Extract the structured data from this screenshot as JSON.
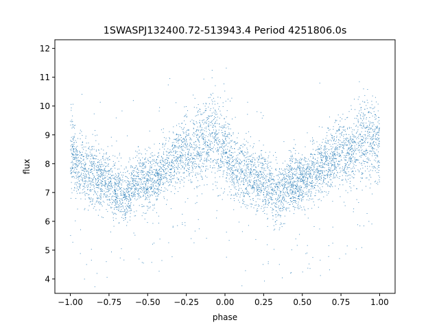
{
  "chart_data": {
    "type": "scatter",
    "title": "1SWASPJ132400.72-513943.4 Period 4251806.0s",
    "xlabel": "phase",
    "ylabel": "flux",
    "xlim": [
      -1.1,
      1.1
    ],
    "ylim": [
      3.5,
      12.3
    ],
    "x_ticks": [
      -1.0,
      -0.75,
      -0.5,
      -0.25,
      0.0,
      0.25,
      0.5,
      0.75,
      1.0
    ],
    "x_tick_labels": [
      "−1.00",
      "−0.75",
      "−0.50",
      "−0.25",
      "0.00",
      "0.25",
      "0.50",
      "0.75",
      "1.00"
    ],
    "y_ticks": [
      4,
      5,
      6,
      7,
      8,
      9,
      10,
      11,
      12
    ],
    "y_tick_labels": [
      "4",
      "5",
      "6",
      "7",
      "8",
      "9",
      "10",
      "11",
      "12"
    ],
    "grid": false,
    "legend": "none",
    "marker_color": "#1f77b4",
    "point_count_note": "dense light curve folded over two cycles (phase -1 to 1); values below are representative samples of the point cloud",
    "x": [
      -1.0,
      -0.99,
      -0.98,
      -0.97,
      -0.96,
      -0.95,
      -0.94,
      -0.93,
      -0.92,
      -0.9,
      -0.88,
      -0.86,
      -0.84,
      -0.82,
      -0.8,
      -0.78,
      -0.76,
      -0.74,
      -0.72,
      -0.7,
      -0.68,
      -0.66,
      -0.64,
      -0.62,
      -0.6,
      -0.58,
      -0.56,
      -0.54,
      -0.52,
      -0.5,
      -0.48,
      -0.46,
      -0.44,
      -0.42,
      -0.4,
      -0.38,
      -0.36,
      -0.34,
      -0.32,
      -0.3,
      -0.28,
      -0.26,
      -0.24,
      -0.22,
      -0.2,
      -0.18,
      -0.16,
      -0.14,
      -0.12,
      -0.1,
      -0.08,
      -0.06,
      -0.04,
      -0.02,
      0.0,
      0.01,
      0.02,
      0.03,
      0.04,
      0.05,
      0.06,
      0.07,
      0.08,
      0.1,
      0.12,
      0.14,
      0.16,
      0.18,
      0.2,
      0.22,
      0.24,
      0.26,
      0.28,
      0.3,
      0.32,
      0.34,
      0.36,
      0.38,
      0.4,
      0.42,
      0.44,
      0.46,
      0.48,
      0.5,
      0.52,
      0.54,
      0.56,
      0.58,
      0.6,
      0.62,
      0.64,
      0.66,
      0.68,
      0.7,
      0.72,
      0.74,
      0.76,
      0.78,
      0.8,
      0.82,
      0.84,
      0.86,
      0.88,
      0.9,
      0.92,
      0.94,
      0.96,
      0.98,
      1.0
    ],
    "y_center": [
      8.6,
      8.5,
      8.3,
      8.2,
      8.0,
      7.9,
      7.9,
      7.8,
      7.7,
      7.7,
      7.6,
      7.6,
      7.6,
      7.6,
      7.5,
      7.5,
      7.4,
      7.3,
      7.2,
      7.1,
      7.0,
      6.9,
      6.9,
      7.0,
      7.2,
      7.3,
      7.4,
      7.4,
      7.4,
      7.4,
      7.5,
      7.5,
      7.6,
      7.7,
      7.8,
      7.9,
      8.0,
      8.1,
      8.2,
      8.3,
      8.4,
      8.5,
      8.4,
      8.3,
      8.4,
      8.5,
      8.6,
      8.8,
      8.9,
      8.9,
      8.9,
      8.8,
      8.7,
      8.7,
      8.6,
      8.5,
      8.3,
      8.2,
      8.0,
      7.9,
      7.9,
      7.8,
      7.7,
      7.7,
      7.6,
      7.6,
      7.6,
      7.6,
      7.5,
      7.5,
      7.4,
      7.3,
      7.2,
      7.1,
      7.0,
      6.9,
      6.9,
      7.0,
      7.2,
      7.3,
      7.4,
      7.4,
      7.4,
      7.4,
      7.5,
      7.5,
      7.6,
      7.7,
      7.8,
      7.9,
      8.0,
      8.1,
      8.2,
      8.3,
      8.4,
      8.5,
      8.4,
      8.3,
      8.4,
      8.5,
      8.6,
      8.8,
      8.9,
      8.9,
      8.9,
      8.8,
      8.7,
      8.7,
      8.6
    ],
    "y_spread": [
      1.3,
      1.2,
      1.2,
      1.1,
      1.1,
      1.0,
      1.0,
      1.0,
      1.0,
      1.0,
      1.0,
      1.0,
      1.0,
      1.0,
      1.0,
      1.0,
      1.0,
      1.0,
      1.0,
      1.0,
      1.0,
      1.0,
      0.9,
      0.9,
      0.9,
      0.9,
      0.9,
      0.9,
      0.9,
      0.9,
      0.9,
      0.9,
      0.9,
      0.9,
      0.9,
      0.9,
      0.9,
      0.9,
      1.0,
      1.0,
      1.0,
      1.1,
      1.1,
      1.1,
      1.1,
      1.2,
      1.2,
      1.2,
      1.3,
      1.3,
      1.3,
      1.3,
      1.3,
      1.3,
      1.3,
      1.2,
      1.2,
      1.1,
      1.1,
      1.0,
      1.0,
      1.0,
      1.0,
      1.0,
      1.0,
      1.0,
      1.0,
      1.0,
      1.0,
      1.0,
      1.0,
      1.0,
      1.0,
      1.0,
      1.0,
      1.0,
      0.9,
      0.9,
      0.9,
      0.9,
      0.9,
      0.9,
      0.9,
      0.9,
      0.9,
      0.9,
      0.9,
      0.9,
      0.9,
      0.9,
      0.9,
      0.9,
      1.0,
      1.0,
      1.0,
      1.1,
      1.1,
      1.1,
      1.1,
      1.2,
      1.2,
      1.2,
      1.3,
      1.3,
      1.3,
      1.3,
      1.3,
      1.3,
      1.3
    ]
  }
}
